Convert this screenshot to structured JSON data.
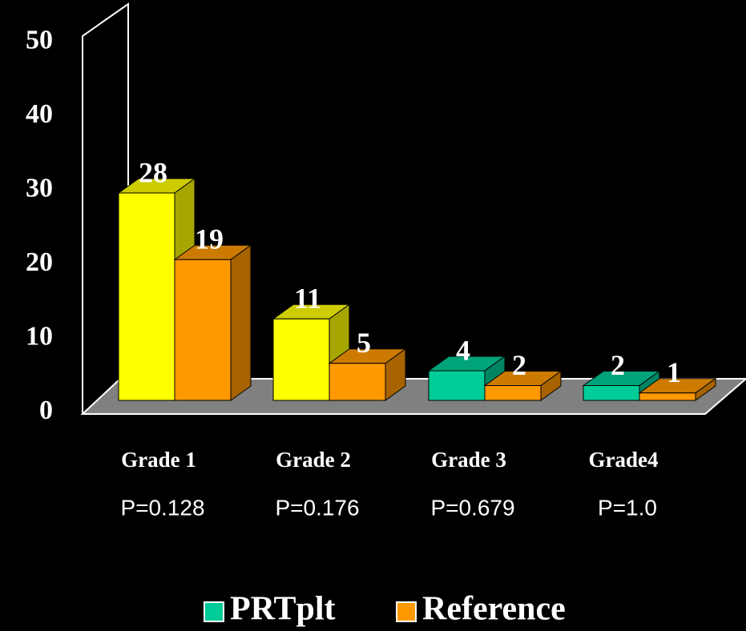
{
  "chart_data": {
    "type": "bar3d",
    "categories": [
      "Grade 1",
      "Grade 2",
      "Grade 3",
      "Grade4"
    ],
    "annotations": [
      "P=0.128",
      "P=0.176",
      "P=0.679",
      "P=1.0"
    ],
    "series": [
      {
        "name": "PRTplt",
        "color": "#00cc99",
        "bar_colors": [
          "#ffff00",
          "#ffff00",
          "#00cc99",
          "#00cc99"
        ],
        "values": [
          28,
          11,
          4,
          2
        ]
      },
      {
        "name": "Reference",
        "color": "#ff9900",
        "bar_colors": [
          "#ff9900",
          "#ff9900",
          "#ff9900",
          "#ff9900"
        ],
        "values": [
          19,
          5,
          2,
          1
        ]
      }
    ],
    "ylim": [
      0,
      50
    ],
    "yticks": [
      0,
      10,
      20,
      30,
      40,
      50
    ],
    "grid": false,
    "legend": "bottom"
  }
}
